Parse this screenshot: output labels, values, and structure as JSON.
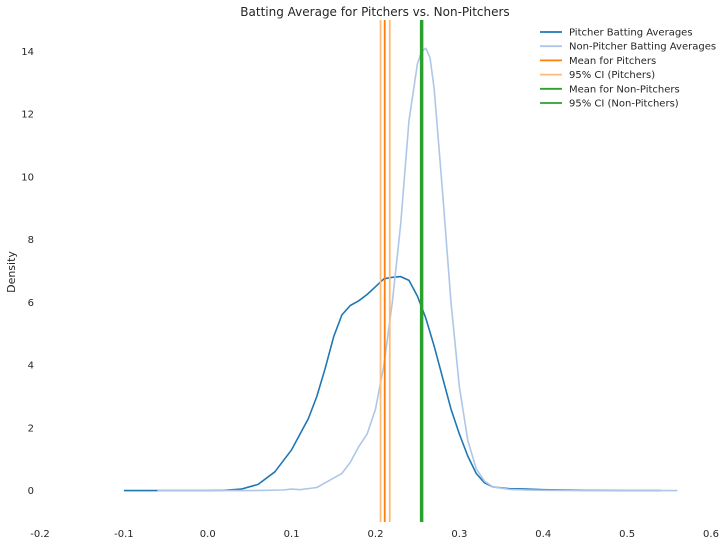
{
  "chart_data": {
    "type": "line",
    "title": "Batting Average for Pitchers vs. Non-Pitchers",
    "xlabel": "",
    "ylabel": "Density",
    "xlim": [
      -0.2,
      0.6
    ],
    "ylim": [
      -1.0,
      15.0
    ],
    "xticks": [
      "-0.2",
      "-0.1",
      "0.0",
      "0.1",
      "0.2",
      "0.3",
      "0.4",
      "0.5",
      "0.6"
    ],
    "yticks": [
      "0",
      "2",
      "4",
      "6",
      "8",
      "10",
      "12",
      "14"
    ],
    "grid": false,
    "legend": "top-right",
    "series": [
      {
        "name": "Pitcher Batting Averages",
        "color": "#1f77b4",
        "x": [
          -0.1,
          -0.05,
          0.0,
          0.02,
          0.04,
          0.06,
          0.08,
          0.1,
          0.12,
          0.13,
          0.14,
          0.15,
          0.16,
          0.17,
          0.18,
          0.19,
          0.2,
          0.21,
          0.22,
          0.23,
          0.24,
          0.25,
          0.26,
          0.27,
          0.28,
          0.29,
          0.3,
          0.31,
          0.32,
          0.33,
          0.34,
          0.36,
          0.38,
          0.4,
          0.45,
          0.5,
          0.54
        ],
        "y": [
          0.0,
          0.0,
          0.0,
          0.01,
          0.05,
          0.2,
          0.6,
          1.3,
          2.3,
          3.0,
          3.9,
          4.9,
          5.6,
          5.9,
          6.05,
          6.25,
          6.5,
          6.75,
          6.8,
          6.82,
          6.7,
          6.2,
          5.5,
          4.6,
          3.6,
          2.6,
          1.8,
          1.1,
          0.55,
          0.25,
          0.12,
          0.06,
          0.05,
          0.03,
          0.01,
          0.0,
          0.0
        ]
      },
      {
        "name": "Non-Pitcher Batting Averages",
        "color": "#aec7e8",
        "x": [
          -0.06,
          0.0,
          0.05,
          0.09,
          0.1,
          0.11,
          0.13,
          0.14,
          0.15,
          0.16,
          0.17,
          0.18,
          0.19,
          0.2,
          0.21,
          0.22,
          0.23,
          0.24,
          0.25,
          0.255,
          0.26,
          0.265,
          0.27,
          0.28,
          0.29,
          0.3,
          0.31,
          0.32,
          0.33,
          0.34,
          0.36,
          0.38,
          0.4,
          0.45,
          0.5,
          0.56
        ],
        "y": [
          0.0,
          0.0,
          0.0,
          0.02,
          0.05,
          0.03,
          0.1,
          0.25,
          0.4,
          0.55,
          0.9,
          1.4,
          1.8,
          2.6,
          4.0,
          6.0,
          8.5,
          11.8,
          13.6,
          14.0,
          14.1,
          13.8,
          12.8,
          9.5,
          6.0,
          3.3,
          1.6,
          0.7,
          0.3,
          0.12,
          0.04,
          0.02,
          0.01,
          0.0,
          0.0,
          0.0
        ]
      }
    ],
    "vertical_lines": [
      {
        "name": "Mean for Pitchers",
        "x": 0.211,
        "color": "#ff7f0e"
      },
      {
        "name": "95% CI (Pitchers)",
        "x": 0.206,
        "color": "#ffbb78",
        "legend": false
      },
      {
        "name": "95% CI (Pitchers)",
        "x": 0.217,
        "color": "#ffbb78"
      },
      {
        "name": "Mean for Non-Pitchers",
        "x": 0.255,
        "color": "#2ca02c"
      },
      {
        "name": "95% CI (Non-Pitchers)",
        "x": 0.254,
        "color": "#2ca02c",
        "legend": false
      },
      {
        "name": "95% CI (Non-Pitchers)",
        "x": 0.256,
        "color": "#2ca02c"
      }
    ]
  }
}
